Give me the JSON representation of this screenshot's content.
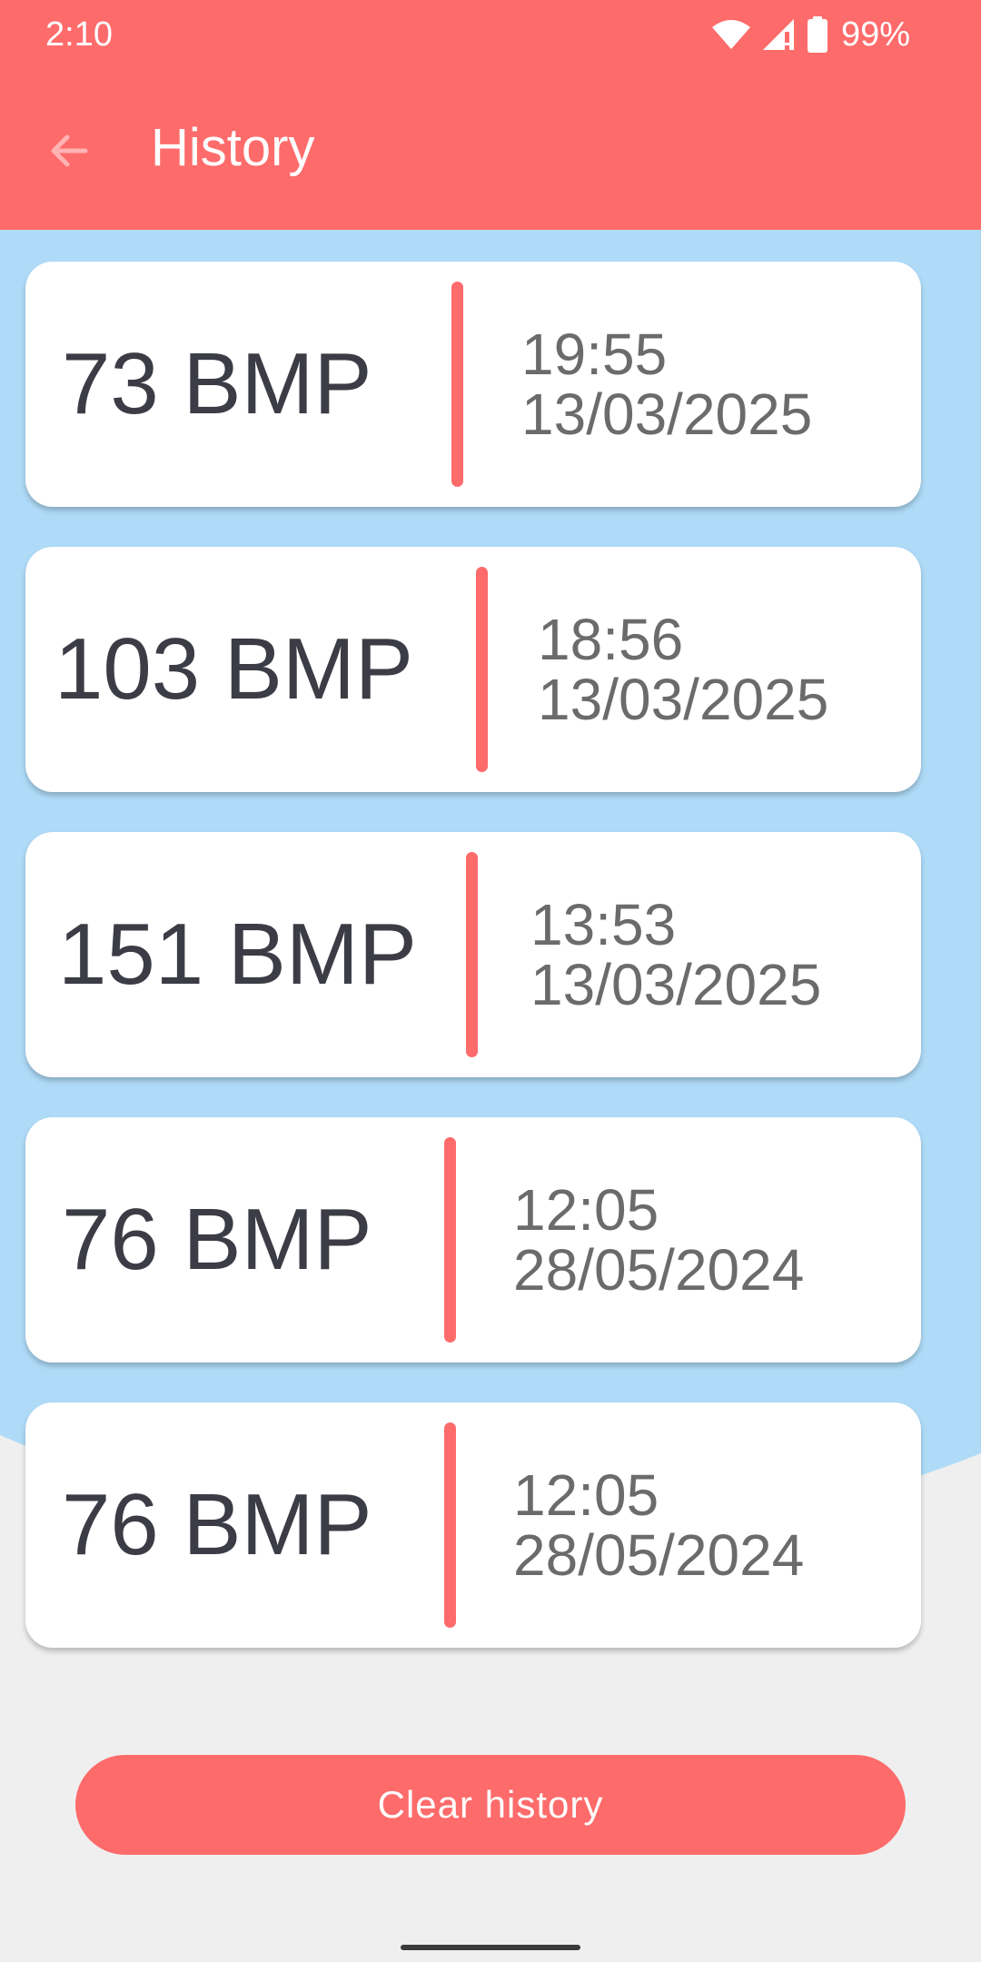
{
  "status_bar": {
    "time": "2:10",
    "battery": "99%",
    "icons": [
      "wifi-icon",
      "signal-icon",
      "battery-icon"
    ]
  },
  "app_bar": {
    "title": "History",
    "back_icon": "arrow-back-icon"
  },
  "history": [
    {
      "bpm": "73 BMP",
      "time": "19:55",
      "date": "13/03/2025"
    },
    {
      "bpm": "103 BMP",
      "time": "18:56",
      "date": "13/03/2025"
    },
    {
      "bpm": "151 BMP",
      "time": "13:53",
      "date": "13/03/2025"
    },
    {
      "bpm": "76 BMP",
      "time": "12:05",
      "date": "28/05/2024"
    },
    {
      "bpm": "76 BMP",
      "time": "12:05",
      "date": "28/05/2024"
    }
  ],
  "actions": {
    "clear_label": "Clear history"
  },
  "colors": {
    "primary": "#fe6b6b",
    "background_blue": "#afdbf8",
    "background_gray": "#efefef",
    "card": "#ffffff",
    "bpm_text": "#3c3c46",
    "date_text": "#6b6b6b"
  }
}
